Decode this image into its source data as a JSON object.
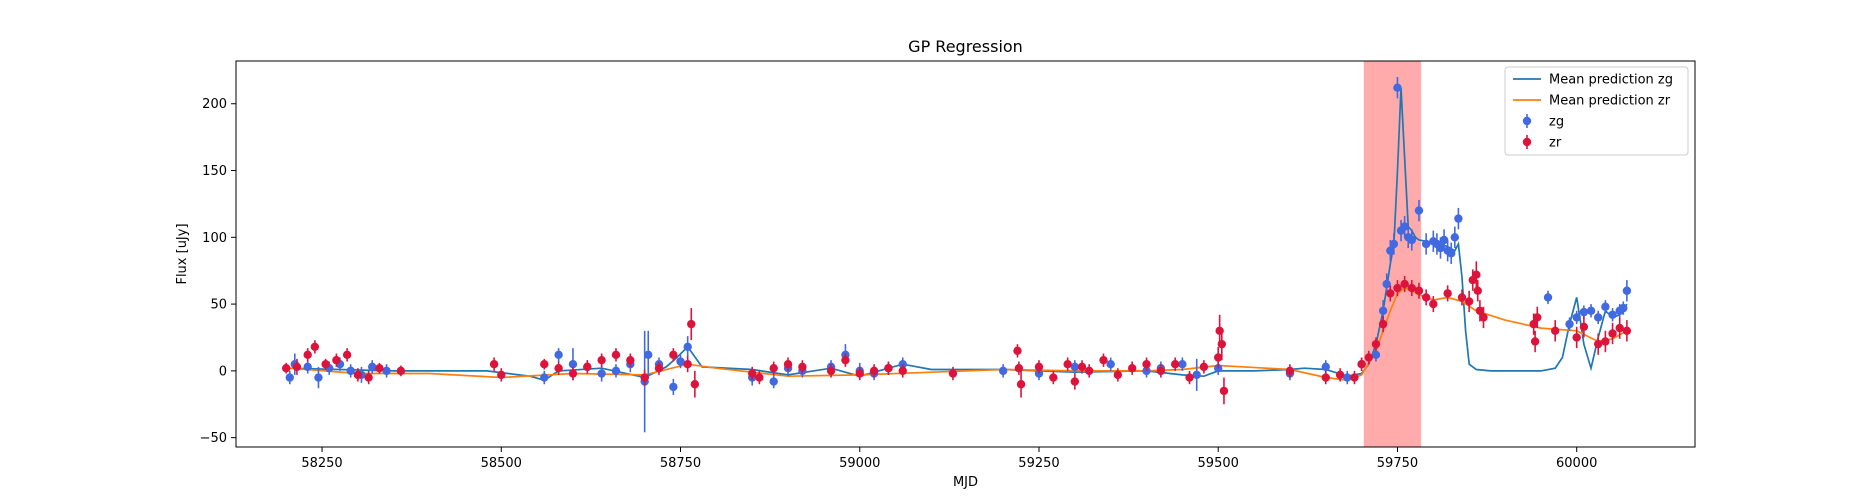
{
  "chart_data": {
    "type": "scatter",
    "title": "GP Regression",
    "xlabel": "MJD",
    "ylabel": "Flux [uJy]",
    "xlim": [
      58130,
      60165
    ],
    "ylim": [
      -57,
      232
    ],
    "x_ticks": [
      58250,
      58500,
      58750,
      59000,
      59250,
      59500,
      59750,
      60000
    ],
    "y_ticks": [
      -50,
      0,
      50,
      100,
      150,
      200
    ],
    "highlight_region": {
      "x": [
        59703,
        59783
      ],
      "color": "#ff9c9c"
    },
    "legend_position": "top-right",
    "series": [
      {
        "name": "Mean prediction zg",
        "kind": "line",
        "color": "#1f77b4",
        "x": [
          58205,
          58350,
          58480,
          58540,
          58560,
          58580,
          58640,
          58700,
          58730,
          58745,
          58760,
          58780,
          58850,
          58900,
          58960,
          59000,
          59060,
          59100,
          59200,
          59300,
          59400,
          59450,
          59480,
          59500,
          59550,
          59600,
          59620,
          59650,
          59680,
          59700,
          59710,
          59720,
          59730,
          59740,
          59745,
          59750,
          59755,
          59760,
          59765,
          59770,
          59775,
          59780,
          59790,
          59800,
          59810,
          59820,
          59830,
          59835,
          59840,
          59845,
          59850,
          59860,
          59880,
          59900,
          59950,
          59970,
          59980,
          59990,
          60000,
          60010,
          60020,
          60030,
          60040,
          60050,
          60060,
          60070
        ],
        "y": [
          2,
          0,
          0,
          -4,
          -7,
          0,
          2,
          -5,
          3,
          10,
          18,
          3,
          1,
          -3,
          2,
          -4,
          5,
          1,
          1,
          -1,
          0,
          -3,
          -4,
          0,
          0,
          1,
          2,
          1,
          -4,
          -2,
          5,
          20,
          45,
          80,
          95,
          150,
          212,
          160,
          108,
          105,
          100,
          98,
          97,
          96,
          95,
          93,
          90,
          95,
          70,
          30,
          5,
          1,
          0,
          0,
          0,
          2,
          10,
          35,
          55,
          20,
          2,
          25,
          45,
          40,
          42,
          50
        ]
      },
      {
        "name": "Mean prediction zr",
        "kind": "line",
        "color": "#ff7f0e",
        "x": [
          58205,
          58300,
          58400,
          58500,
          58600,
          58700,
          58760,
          58800,
          58900,
          59000,
          59100,
          59200,
          59300,
          59400,
          59450,
          59500,
          59600,
          59650,
          59680,
          59700,
          59720,
          59740,
          59750,
          59760,
          59770,
          59780,
          59800,
          59820,
          59840,
          59860,
          59900,
          59950,
          60000,
          60030,
          60050,
          60070
        ],
        "y": [
          2,
          -2,
          -2,
          -5,
          -2,
          -3,
          5,
          2,
          -4,
          -3,
          -1,
          1,
          0,
          0,
          1,
          4,
          1,
          -5,
          -7,
          -3,
          15,
          45,
          58,
          62,
          60,
          57,
          53,
          55,
          52,
          45,
          38,
          32,
          30,
          22,
          24,
          30
        ]
      },
      {
        "name": "zg",
        "kind": "errorbar",
        "color": "#4169e1",
        "x": [
          58205,
          58212,
          58230,
          58245,
          58260,
          58275,
          58290,
          58305,
          58320,
          58340,
          58560,
          58580,
          58600,
          58620,
          58640,
          58660,
          58680,
          58700,
          58705,
          58720,
          58740,
          58750,
          58760,
          58850,
          58880,
          58900,
          58920,
          58960,
          58980,
          59000,
          59020,
          59040,
          59060,
          59200,
          59250,
          59300,
          59350,
          59400,
          59420,
          59450,
          59470,
          59500,
          59600,
          59650,
          59680,
          59700,
          59720,
          59730,
          59735,
          59740,
          59745,
          59750,
          59755,
          59760,
          59765,
          59770,
          59780,
          59790,
          59800,
          59805,
          59810,
          59815,
          59820,
          59825,
          59830,
          59835,
          59960,
          59990,
          60000,
          60010,
          60020,
          60030,
          60040,
          60050,
          60060,
          60065,
          60070
        ],
        "y": [
          -5,
          5,
          3,
          -5,
          2,
          5,
          0,
          -3,
          3,
          0,
          -5,
          12,
          5,
          3,
          -2,
          0,
          5,
          -8,
          12,
          5,
          -12,
          7,
          18,
          -5,
          -8,
          2,
          0,
          3,
          12,
          0,
          -2,
          2,
          5,
          0,
          -2,
          3,
          5,
          0,
          2,
          5,
          -3,
          2,
          -2,
          3,
          -5,
          5,
          12,
          45,
          65,
          90,
          95,
          212,
          105,
          108,
          100,
          98,
          120,
          95,
          97,
          95,
          92,
          98,
          90,
          88,
          100,
          114,
          55,
          35,
          40,
          44,
          45,
          40,
          48,
          42,
          45,
          47,
          60
        ],
        "yerr": [
          5,
          8,
          5,
          8,
          5,
          5,
          5,
          6,
          5,
          5,
          5,
          5,
          12,
          5,
          6,
          5,
          6,
          38,
          18,
          5,
          6,
          5,
          8,
          6,
          5,
          6,
          5,
          5,
          8,
          6,
          5,
          5,
          5,
          5,
          5,
          5,
          5,
          5,
          5,
          5,
          12,
          5,
          5,
          5,
          5,
          5,
          5,
          8,
          8,
          8,
          8,
          8,
          8,
          8,
          8,
          8,
          8,
          8,
          8,
          8,
          8,
          8,
          8,
          8,
          8,
          8,
          5,
          5,
          5,
          5,
          5,
          5,
          5,
          5,
          5,
          5,
          8
        ]
      },
      {
        "name": "zr",
        "kind": "errorbar",
        "color": "#dc143c",
        "x": [
          58200,
          58215,
          58230,
          58240,
          58255,
          58270,
          58285,
          58300,
          58315,
          58330,
          58360,
          58490,
          58500,
          58560,
          58580,
          58600,
          58620,
          58640,
          58660,
          58680,
          58700,
          58720,
          58740,
          58760,
          58765,
          58770,
          58850,
          58860,
          58880,
          58900,
          58920,
          58960,
          58980,
          59000,
          59020,
          59040,
          59060,
          59130,
          59220,
          59222,
          59225,
          59250,
          59270,
          59290,
          59300,
          59310,
          59320,
          59340,
          59360,
          59380,
          59400,
          59420,
          59440,
          59460,
          59480,
          59500,
          59502,
          59505,
          59508,
          59600,
          59650,
          59670,
          59690,
          59700,
          59710,
          59720,
          59730,
          59740,
          59750,
          59760,
          59770,
          59780,
          59790,
          59800,
          59820,
          59840,
          59850,
          59855,
          59860,
          59862,
          59865,
          59870,
          59940,
          59942,
          59945,
          59970,
          60000,
          60010,
          60030,
          60040,
          60050,
          60060,
          60070
        ],
        "y": [
          2,
          3,
          12,
          18,
          5,
          8,
          12,
          -3,
          -5,
          2,
          0,
          5,
          -3,
          5,
          2,
          -2,
          3,
          8,
          12,
          8,
          -5,
          2,
          12,
          5,
          35,
          -10,
          -2,
          -5,
          2,
          5,
          3,
          0,
          8,
          -2,
          0,
          2,
          0,
          -2,
          15,
          2,
          -10,
          3,
          -5,
          5,
          -8,
          3,
          0,
          8,
          -3,
          2,
          5,
          0,
          5,
          -5,
          3,
          10,
          30,
          20,
          -15,
          0,
          -5,
          -3,
          -5,
          5,
          10,
          20,
          35,
          58,
          62,
          65,
          62,
          60,
          55,
          50,
          58,
          55,
          52,
          68,
          72,
          60,
          45,
          40,
          35,
          22,
          40,
          30,
          25,
          33,
          20,
          22,
          28,
          32,
          30
        ],
        "yerr": [
          4,
          6,
          5,
          5,
          4,
          5,
          5,
          5,
          5,
          4,
          4,
          5,
          5,
          4,
          5,
          5,
          5,
          5,
          5,
          5,
          6,
          5,
          5,
          6,
          12,
          10,
          5,
          5,
          5,
          5,
          5,
          5,
          5,
          5,
          5,
          5,
          5,
          5,
          5,
          5,
          10,
          5,
          5,
          5,
          6,
          5,
          5,
          5,
          5,
          5,
          5,
          5,
          5,
          5,
          5,
          8,
          12,
          12,
          10,
          5,
          5,
          5,
          5,
          5,
          5,
          5,
          6,
          6,
          6,
          6,
          6,
          6,
          6,
          6,
          6,
          6,
          8,
          8,
          10,
          8,
          8,
          8,
          8,
          8,
          8,
          8,
          8,
          8,
          8,
          8,
          8,
          8,
          8
        ]
      }
    ]
  }
}
